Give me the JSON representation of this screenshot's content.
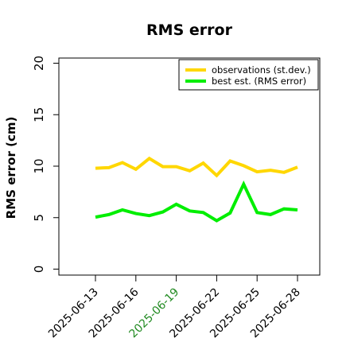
{
  "chart_data": {
    "type": "line",
    "title": "RMS error",
    "ylabel": "RMS error (cm)",
    "xlabel": "",
    "ylim": [
      0,
      21
    ],
    "yticks": [
      0,
      5,
      10,
      15,
      20
    ],
    "x": [
      "2025-06-13",
      "2025-06-14",
      "2025-06-15",
      "2025-06-16",
      "2025-06-17",
      "2025-06-18",
      "2025-06-19",
      "2025-06-20",
      "2025-06-21",
      "2025-06-22",
      "2025-06-23",
      "2025-06-24",
      "2025-06-25",
      "2025-06-26",
      "2025-06-27",
      "2025-06-28"
    ],
    "xticks": [
      "2025-06-13",
      "2025-06-16",
      "2025-06-19",
      "2025-06-22",
      "2025-06-25",
      "2025-06-28"
    ],
    "highlighted_tick": "2025-06-19",
    "highlight_color": "#228B22",
    "grid": false,
    "legend_position": "top-right",
    "series": [
      {
        "name": "observations (st.dev.)",
        "color": "#FFD700",
        "values": [
          9.8,
          9.85,
          10.35,
          9.7,
          10.75,
          9.95,
          9.95,
          9.55,
          10.3,
          9.1,
          10.5,
          10.05,
          9.45,
          9.6,
          9.4,
          9.9
        ]
      },
      {
        "name": "best est. (RMS error)",
        "color": "#00EE00",
        "values": [
          5.05,
          5.3,
          5.75,
          5.4,
          5.2,
          5.55,
          6.3,
          5.65,
          5.5,
          4.7,
          5.45,
          8.25,
          5.5,
          5.3,
          5.85,
          5.75
        ]
      }
    ]
  }
}
